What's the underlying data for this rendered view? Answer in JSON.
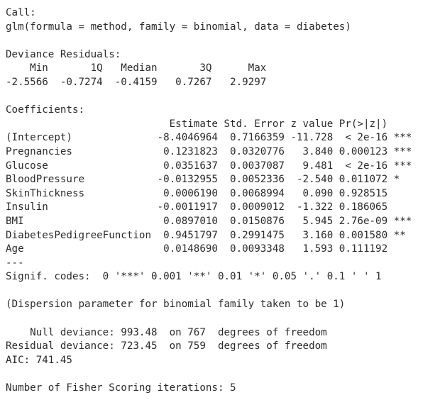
{
  "output": {
    "call_header": "Call:",
    "call_text": "glm(formula = method, family = binomial, data = diabetes)",
    "deviance_header": "Deviance Residuals:",
    "deviance_labels": "    Min       1Q   Median       3Q      Max  ",
    "deviance_values": "-2.5566  -0.7274  -0.4159   0.7267   2.9297  ",
    "coef_header": "Coefficients:",
    "coef_columns": "                           Estimate Std. Error z value Pr(>|z|)    ",
    "coef_rows": [
      "(Intercept)              -8.4046964  0.7166359 -11.728  < 2e-16 ***",
      "Pregnancies               0.1231823  0.0320776   3.840 0.000123 ***",
      "Glucose                   0.0351637  0.0037087   9.481  < 2e-16 ***",
      "BloodPressure            -0.0132955  0.0052336  -2.540 0.011072 *  ",
      "SkinThickness             0.0006190  0.0068994   0.090 0.928515    ",
      "Insulin                  -0.0011917  0.0009012  -1.322 0.186065    ",
      "BMI                       0.0897010  0.0150876   5.945 2.76e-09 ***",
      "DiabetesPedigreeFunction  0.9451797  0.2991475   3.160 0.001580 ** ",
      "Age                       0.0148690  0.0093348   1.593 0.111192    "
    ],
    "separator": "---",
    "signif_codes": "Signif. codes:  0 '***' 0.001 '**' 0.01 '*' 0.05 '.' 0.1 ' ' 1",
    "dispersion_note": "(Dispersion parameter for binomial family taken to be 1)",
    "null_deviance": "    Null deviance: 993.48  on 767  degrees of freedom",
    "residual_deviance": "Residual deviance: 723.45  on 759  degrees of freedom",
    "aic": "AIC: 741.45",
    "fisher_iterations": "Number of Fisher Scoring iterations: 5"
  },
  "colors": {
    "background": "#ffffff",
    "text": "#2b2b2b"
  }
}
